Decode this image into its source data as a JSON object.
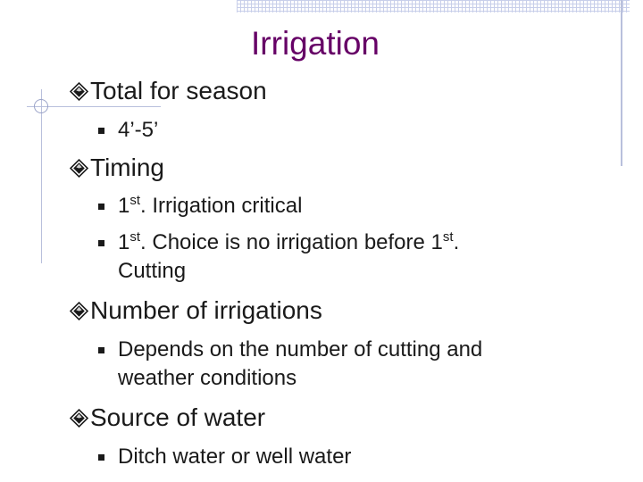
{
  "slide": {
    "title": "Irrigation",
    "sections": [
      {
        "heading": "Total for season",
        "bullets": [
          {
            "lines": [
              "4’-5’"
            ]
          }
        ]
      },
      {
        "heading": "Timing",
        "bullets": [
          {
            "pre": "1",
            "sup": "st",
            "post": ". Irrigation critical"
          },
          {
            "pre": "1",
            "sup": "st",
            "mid": ". Choice is no irrigation before 1",
            "sup2": "st",
            "post": ".",
            "line2": "Cutting"
          }
        ]
      },
      {
        "heading": "Number of irrigations",
        "bullets": [
          {
            "lines": [
              "Depends on the number of cutting and",
              "weather conditions"
            ]
          }
        ]
      },
      {
        "heading": "Source of water",
        "bullets": [
          {
            "lines": [
              "Ditch water or well water"
            ]
          }
        ]
      }
    ]
  },
  "style": {
    "title_color": "#660066",
    "text_color": "#1a1a1a",
    "accent_line_color": "#b9c0dc",
    "diamond_icon": "diamond-bullet-icon",
    "square_icon": "square-bullet-icon"
  }
}
